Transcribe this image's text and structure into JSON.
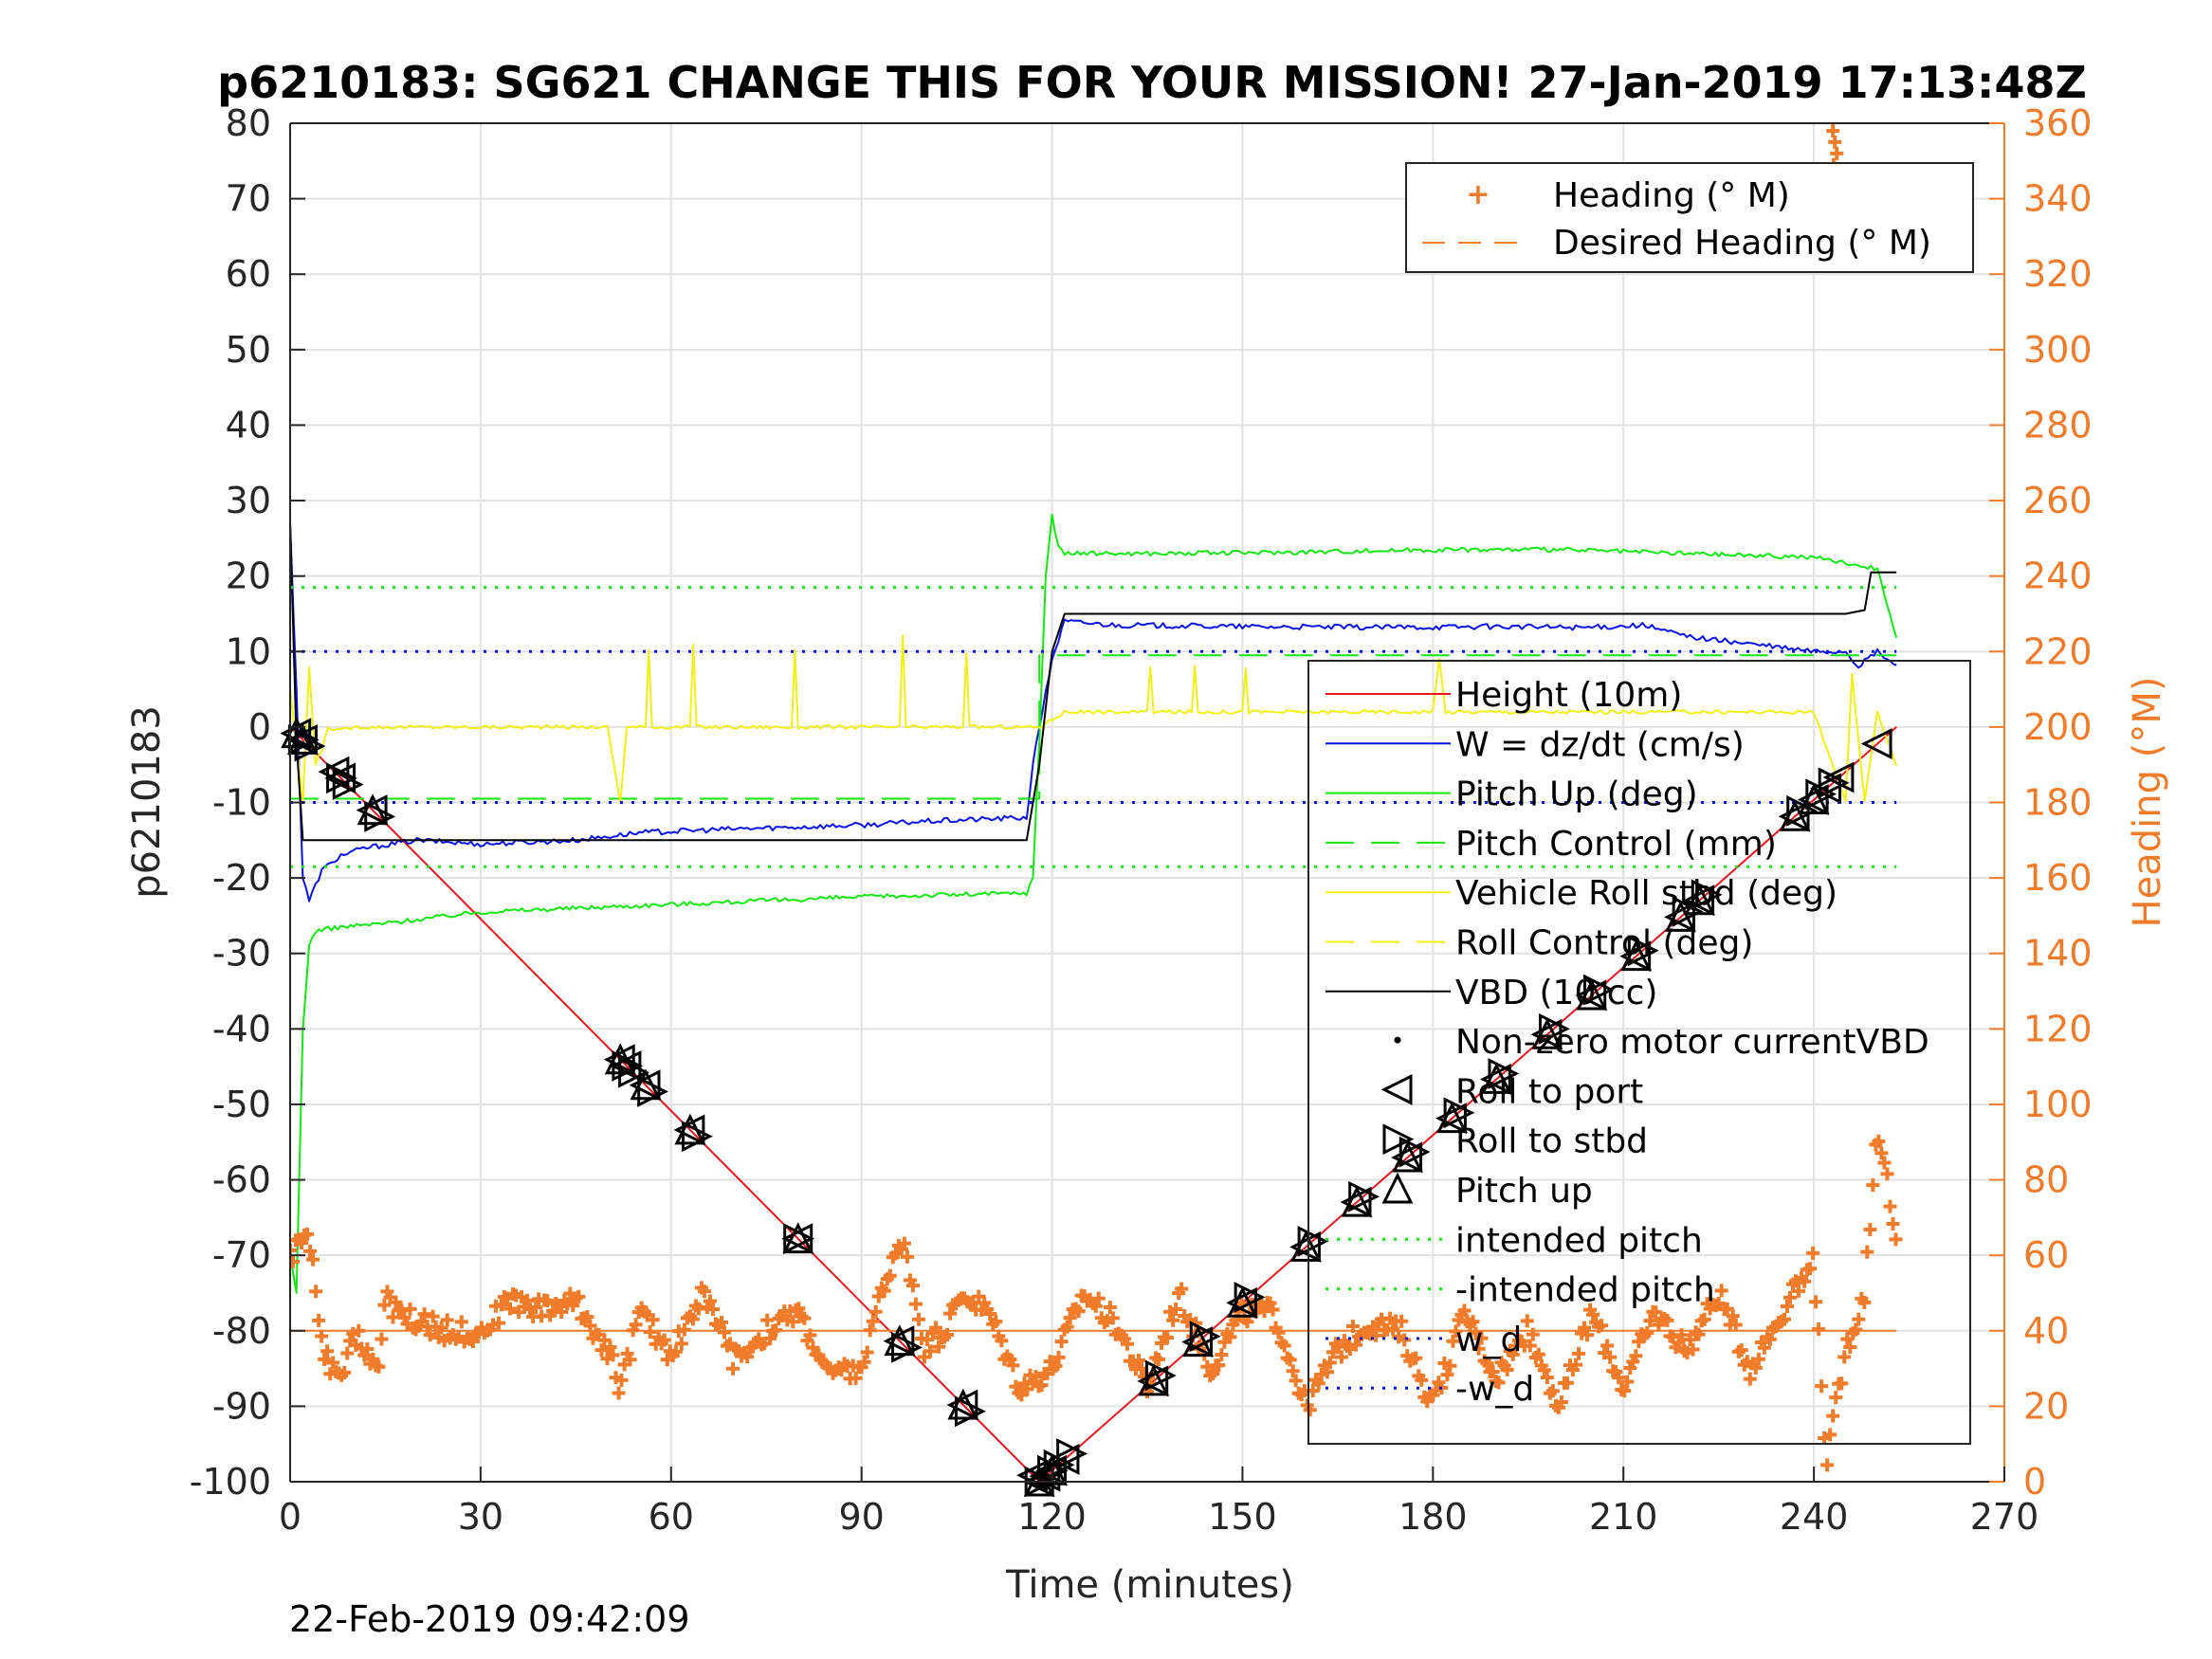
{
  "chart_data": {
    "type": "line",
    "title": "p6210183: SG621 CHANGE THIS FOR YOUR MISSION! 27-Jan-2019 17:13:48Z",
    "xlabel": "Time (minutes)",
    "ylabel_left": "p6210183",
    "ylabel_right": "Heading (°M)",
    "footer": "22-Feb-2019 09:42:09",
    "xlim": [
      0,
      270
    ],
    "ylim_left": [
      -100,
      80
    ],
    "ylim_right": [
      0,
      360
    ],
    "x_ticks": [
      "0",
      "30",
      "60",
      "90",
      "120",
      "150",
      "180",
      "210",
      "240",
      "270"
    ],
    "y_ticks_left": [
      "80",
      "70",
      "60",
      "50",
      "40",
      "30",
      "20",
      "10",
      "0",
      "-10",
      "-20",
      "-30",
      "-40",
      "-50",
      "-60",
      "-70",
      "-80",
      "-90",
      "-100"
    ],
    "y_ticks_right": [
      "360",
      "340",
      "320",
      "300",
      "280",
      "260",
      "240",
      "220",
      "200",
      "180",
      "160",
      "140",
      "120",
      "100",
      "80",
      "60",
      "40",
      "20",
      "0"
    ],
    "grid": true,
    "colors": {
      "height": "#E8141E",
      "w": "#0A14E0",
      "pitch": "#14E614",
      "roll": "#F0F014",
      "vbd": "#000000",
      "heading": "#F07C2B"
    },
    "legend_top": {
      "placement": "top-right",
      "entries": [
        "Heading (° M)",
        "Desired Heading (° M)"
      ]
    },
    "legend_main": {
      "placement": "right",
      "entries": [
        "Height (10m)",
        "W = dz/dt (cm/s)",
        "Pitch Up (deg)",
        "Pitch Control (mm)",
        "Vehicle Roll stbd (deg)",
        "Roll Control (deg)",
        "VBD (10 cc)",
        "Non-zero motor currentVBD",
        "Roll to port",
        "Roll to stbd",
        "Pitch up",
        "intended pitch",
        "-intended pitch",
        "w_d",
        "-w_d"
      ]
    },
    "series": [
      {
        "name": "Height (10m)",
        "axis": "left",
        "x": [
          0,
          118,
          253
        ],
        "y": [
          0,
          -100,
          0
        ]
      },
      {
        "name": "W = dz/dt (cm/s)",
        "axis": "left",
        "x": [
          0,
          1,
          2,
          3,
          5,
          8,
          12,
          20,
          30,
          45,
          55,
          70,
          90,
          100,
          116,
          117,
          118,
          120,
          122,
          130,
          150,
          170,
          190,
          205,
          213,
          220,
          240,
          245,
          247,
          250,
          253
        ],
        "y": [
          27,
          5,
          -20,
          -23,
          -19,
          -17,
          -16,
          -15,
          -15.5,
          -15,
          -14,
          -13.5,
          -13,
          -12.5,
          -12,
          -5,
          0,
          9,
          14,
          13.5,
          13.3,
          13.2,
          13.3,
          13.2,
          13.5,
          12,
          10,
          10,
          8,
          10,
          8
        ]
      },
      {
        "name": "Pitch Up (deg)",
        "axis": "left",
        "x": [
          0,
          1,
          2,
          3,
          4,
          8,
          15,
          30,
          60,
          90,
          116,
          117,
          118,
          119,
          120,
          121,
          122,
          140,
          160,
          180,
          200,
          220,
          240,
          250,
          253
        ],
        "y": [
          -70,
          -75,
          -40,
          -29,
          -27,
          -26.5,
          -26,
          -24.5,
          -23.5,
          -22.5,
          -22,
          -20,
          -2,
          20,
          28,
          24,
          23,
          23,
          23.2,
          23.5,
          23.5,
          23,
          22.5,
          21,
          12
        ]
      },
      {
        "name": "Pitch Control (mm)",
        "axis": "left",
        "x": [
          0,
          118,
          118,
          253
        ],
        "y": [
          -9.5,
          -9.5,
          9.5,
          9.5
        ]
      },
      {
        "name": "Vehicle Roll stbd (deg)",
        "axis": "left",
        "x": [
          0,
          2,
          3,
          4,
          5,
          6,
          8,
          10,
          20,
          50,
          52,
          53,
          56,
          56.5,
          57,
          63,
          63.5,
          64,
          79,
          79.5,
          80,
          96,
          96.5,
          97,
          106,
          106.5,
          107,
          118,
          120,
          122,
          135,
          135.5,
          136,
          142,
          142.5,
          143,
          150,
          150.5,
          151,
          165,
          180,
          181,
          182,
          200,
          220,
          240,
          245,
          246,
          248,
          250,
          253
        ],
        "y": [
          5,
          -10,
          8,
          -5,
          -3,
          0,
          -0.5,
          0,
          0,
          0,
          -10,
          0,
          0,
          10,
          0,
          0,
          11,
          0,
          0,
          10,
          0,
          0,
          12,
          0,
          0,
          10,
          0,
          0,
          1,
          2,
          2,
          8,
          2,
          2,
          8,
          2,
          2,
          8,
          2,
          2,
          2,
          9,
          2,
          2,
          2,
          2,
          -10,
          7,
          -10,
          2,
          -5
        ]
      },
      {
        "name": "VBD (10 cc)",
        "axis": "left",
        "x": [
          0,
          1,
          2,
          116,
          118,
          120,
          122,
          245,
          248,
          249,
          253
        ],
        "y": [
          27,
          -2,
          -15,
          -15,
          -5,
          10,
          15,
          15,
          15.5,
          20.5,
          20.5
        ]
      },
      {
        "name": "intended pitch",
        "axis": "left",
        "x": [
          0,
          253
        ],
        "y": [
          18.5,
          18.5
        ]
      },
      {
        "name": "-intended pitch",
        "axis": "left",
        "x": [
          0,
          253
        ],
        "y": [
          -18.5,
          -18.5
        ]
      },
      {
        "name": "w_d",
        "axis": "left",
        "x": [
          0,
          253
        ],
        "y": [
          10,
          10
        ]
      },
      {
        "name": "-w_d",
        "axis": "left",
        "x": [
          0,
          253
        ],
        "y": [
          -10,
          -10
        ]
      },
      {
        "name": "Desired Heading (° M)",
        "axis": "right",
        "x": [
          0,
          253
        ],
        "y": [
          40,
          40
        ]
      },
      {
        "name": "Heading (° M)",
        "axis": "right",
        "x": [
          0,
          3,
          5,
          8,
          10,
          14,
          15,
          20,
          25,
          30,
          35,
          40,
          45,
          50,
          52,
          55,
          60,
          65,
          70,
          75,
          80,
          85,
          90,
          95,
          97,
          100,
          103,
          106,
          110,
          115,
          120,
          125,
          130,
          135,
          140,
          145,
          150,
          155,
          160,
          165,
          170,
          175,
          180,
          185,
          190,
          195,
          200,
          205,
          210,
          215,
          220,
          225,
          230,
          235,
          240,
          242,
          245,
          248,
          250,
          252,
          253
        ],
        "y": [
          60,
          65,
          35,
          25,
          40,
          30,
          48,
          42,
          40,
          40,
          48,
          46,
          48,
          35,
          25,
          45,
          34,
          50,
          32,
          40,
          45,
          28,
          30,
          60,
          62,
          35,
          40,
          50,
          45,
          25,
          30,
          50,
          42,
          25,
          50,
          30,
          45,
          45,
          20,
          35,
          42,
          40,
          20,
          45,
          28,
          40,
          20,
          45,
          25,
          45,
          35,
          50,
          30,
          45,
          58,
          5,
          35,
          50,
          95,
          75,
          60
        ]
      }
    ],
    "markers": {
      "roll_to_port_x": [
        1,
        2,
        7,
        8,
        13,
        52,
        53,
        56,
        63,
        80,
        96,
        106,
        117,
        118,
        119,
        120,
        122,
        136,
        143,
        150,
        160,
        168,
        176,
        183,
        190,
        198,
        205,
        212,
        219,
        222,
        237,
        240,
        242,
        244,
        250
      ],
      "roll_to_stbd_x": [
        2,
        3,
        8,
        9,
        14,
        53,
        54,
        57,
        64,
        80,
        97,
        107,
        118,
        120,
        121,
        123,
        137,
        144,
        151,
        161,
        169,
        177,
        184,
        191,
        199,
        206,
        213,
        220,
        223,
        238,
        241,
        243
      ],
      "pitch_up_x": [
        1,
        2,
        13,
        52,
        56,
        63,
        80,
        96,
        106,
        118,
        120,
        136,
        143,
        150,
        160,
        168,
        176,
        183,
        190,
        198,
        205,
        212,
        219,
        222,
        237,
        240
      ]
    }
  }
}
